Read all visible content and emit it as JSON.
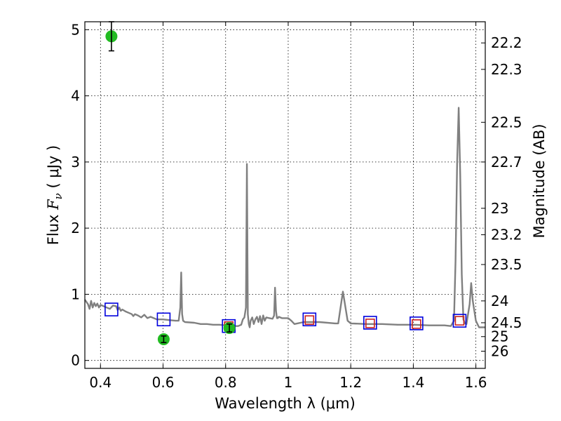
{
  "chart_data": {
    "type": "scatter",
    "xlabel": "Wavelength  λ (μm)",
    "ylabel_prefix": "Flux  ",
    "ylabel_var": "F",
    "ylabel_sub": "ν",
    "ylabel_suffix": "  ( μJy )",
    "y2label": "Magnitude (AB)",
    "xlim": [
      0.35,
      1.63
    ],
    "ylim": [
      -0.12,
      5.12
    ],
    "grid": true,
    "x_ticks": [
      0.4,
      0.6,
      0.8,
      1.0,
      1.2,
      1.4,
      1.6
    ],
    "x_tick_labels": [
      "0.4",
      "0.6",
      "0.8",
      "1",
      "1.2",
      "1.4",
      "1.6"
    ],
    "y_ticks": [
      0,
      1,
      2,
      3,
      4,
      5
    ],
    "y_tick_labels": [
      "0",
      "1",
      "2",
      "3",
      "4",
      "5"
    ],
    "magnitude_ticks": [
      {
        "label": "22.2",
        "flux": 4.8
      },
      {
        "label": "22.3",
        "flux": 4.4
      },
      {
        "label": "22.5",
        "flux": 3.6
      },
      {
        "label": "22.7",
        "flux": 3.0
      },
      {
        "label": "23",
        "flux": 2.3
      },
      {
        "label": "23.2",
        "flux": 1.9
      },
      {
        "label": "23.5",
        "flux": 1.45
      },
      {
        "label": "24",
        "flux": 0.9
      },
      {
        "label": "24.5",
        "flux": 0.57
      },
      {
        "label": "25",
        "flux": 0.36
      },
      {
        "label": "26",
        "flux": 0.14
      }
    ],
    "series": [
      {
        "kind": "line",
        "color": "#808080",
        "x": [
          0.35,
          0.36,
          0.365,
          0.37,
          0.375,
          0.38,
          0.385,
          0.39,
          0.395,
          0.4,
          0.41,
          0.42,
          0.43,
          0.44,
          0.45,
          0.455,
          0.46,
          0.465,
          0.47,
          0.48,
          0.49,
          0.5,
          0.505,
          0.51,
          0.52,
          0.53,
          0.54,
          0.55,
          0.56,
          0.58,
          0.6,
          0.62,
          0.64,
          0.65,
          0.655,
          0.658,
          0.661,
          0.664,
          0.67,
          0.7,
          0.72,
          0.74,
          0.76,
          0.78,
          0.8,
          0.82,
          0.84,
          0.85,
          0.855,
          0.86,
          0.865,
          0.868,
          0.871,
          0.874,
          0.877,
          0.88,
          0.885,
          0.89,
          0.895,
          0.9,
          0.905,
          0.91,
          0.915,
          0.92,
          0.925,
          0.93,
          0.94,
          0.95,
          0.955,
          0.958,
          0.961,
          0.964,
          0.967,
          0.97,
          0.98,
          1.0,
          1.01,
          1.02,
          1.05,
          1.1,
          1.15,
          1.16,
          1.175,
          1.19,
          1.2,
          1.25,
          1.3,
          1.35,
          1.4,
          1.45,
          1.5,
          1.52,
          1.53,
          1.535,
          1.54,
          1.545,
          1.55,
          1.555,
          1.56,
          1.565,
          1.57,
          1.58,
          1.585,
          1.59,
          1.6,
          1.61,
          1.63
        ],
        "y": [
          0.92,
          0.85,
          0.78,
          0.9,
          0.8,
          0.87,
          0.82,
          0.86,
          0.8,
          0.84,
          0.82,
          0.8,
          0.78,
          0.83,
          0.82,
          0.76,
          0.8,
          0.75,
          0.77,
          0.74,
          0.72,
          0.7,
          0.67,
          0.7,
          0.68,
          0.65,
          0.69,
          0.64,
          0.66,
          0.62,
          0.62,
          0.61,
          0.6,
          0.6,
          0.8,
          1.33,
          0.7,
          0.6,
          0.58,
          0.57,
          0.55,
          0.55,
          0.54,
          0.54,
          0.53,
          0.52,
          0.52,
          0.54,
          0.62,
          0.65,
          0.8,
          2.97,
          0.7,
          0.55,
          0.5,
          0.6,
          0.65,
          0.55,
          0.62,
          0.66,
          0.58,
          0.67,
          0.55,
          0.68,
          0.6,
          0.65,
          0.64,
          0.63,
          0.68,
          1.1,
          0.75,
          0.64,
          0.64,
          0.66,
          0.64,
          0.64,
          0.6,
          0.55,
          0.58,
          0.58,
          0.56,
          0.56,
          1.04,
          0.6,
          0.56,
          0.55,
          0.55,
          0.54,
          0.54,
          0.53,
          0.53,
          0.52,
          0.6,
          1.5,
          3.0,
          3.82,
          2.8,
          1.3,
          0.62,
          0.56,
          0.55,
          0.85,
          1.17,
          0.9,
          0.6,
          0.5,
          0.5
        ]
      },
      {
        "kind": "open-square",
        "color": "#0000dd",
        "x": [
          0.435,
          0.602,
          0.81,
          1.068,
          1.262,
          1.41,
          1.548
        ],
        "y": [
          0.77,
          0.62,
          0.52,
          0.62,
          0.57,
          0.56,
          0.6
        ]
      },
      {
        "kind": "open-square",
        "color": "#cc2222",
        "x": [
          0.81,
          1.068,
          1.262,
          1.41,
          1.548
        ],
        "y": [
          0.52,
          0.61,
          0.56,
          0.55,
          0.6
        ]
      },
      {
        "kind": "point-errorbar",
        "color": "#22bb22",
        "x": [
          0.435,
          0.602,
          0.812
        ],
        "y": [
          4.9,
          0.32,
          0.49
        ],
        "yerr": [
          0.22,
          0.05,
          0.06
        ]
      }
    ]
  }
}
